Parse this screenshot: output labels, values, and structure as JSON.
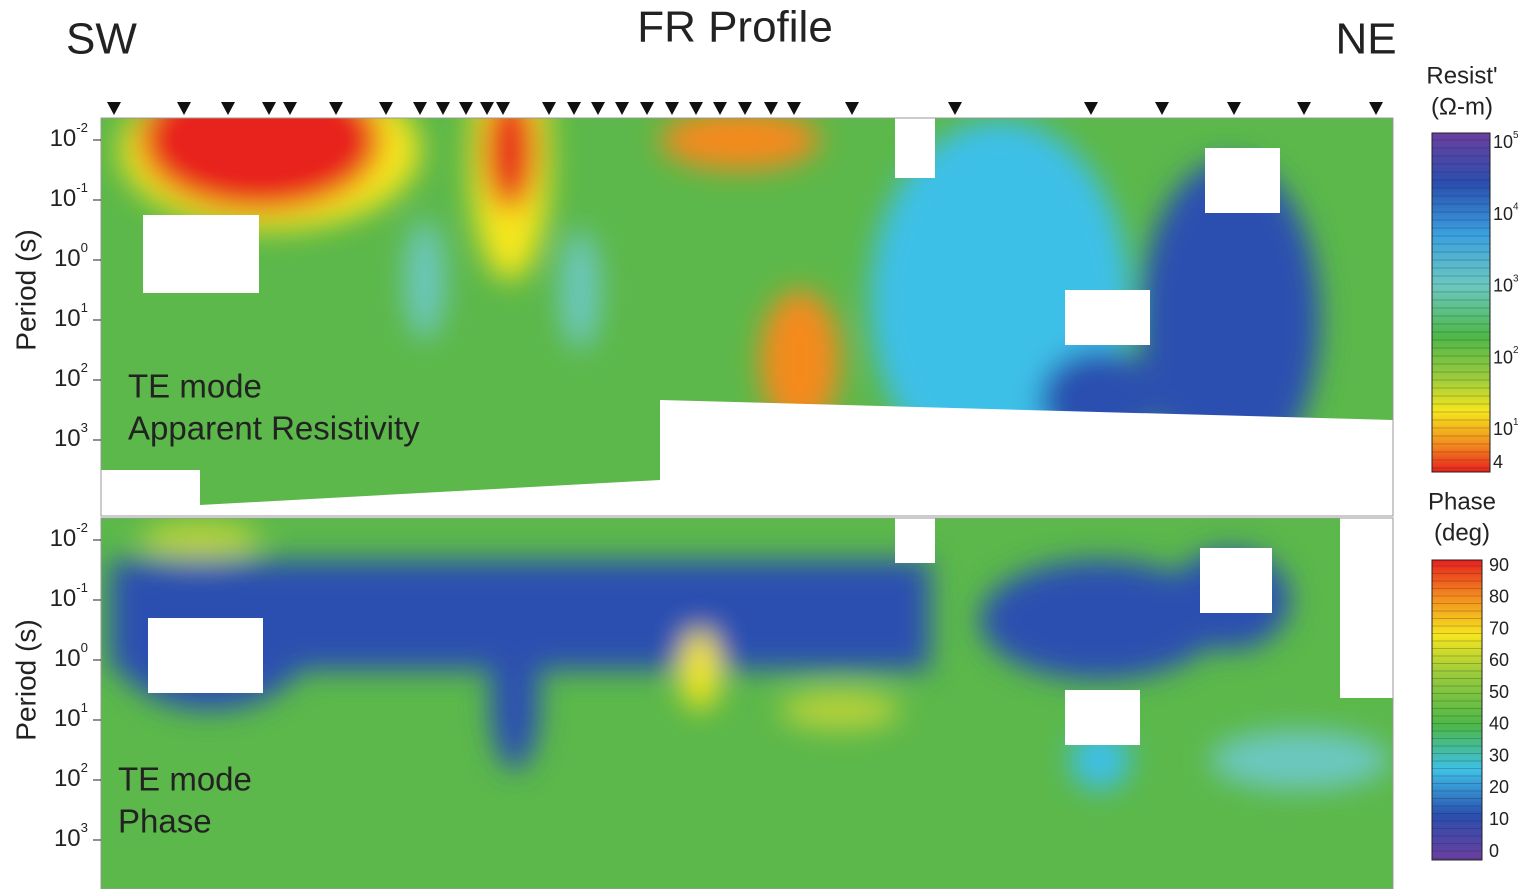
{
  "header": {
    "left": "SW",
    "title": "FR Profile",
    "right": "NE"
  },
  "panels": [
    {
      "y_label": "Period (s)",
      "mode": "TE mode",
      "quantity": "Apparent Resistivity",
      "yticks": [
        {
          "base": "10",
          "exp": -2
        },
        {
          "base": "10",
          "exp": -1
        },
        {
          "base": "10",
          "exp": 0
        },
        {
          "base": "10",
          "exp": 1
        },
        {
          "base": "10",
          "exp": 2
        },
        {
          "base": "10",
          "exp": 3
        }
      ]
    },
    {
      "y_label": "Period (s)",
      "mode": "TE mode",
      "quantity": "Phase",
      "yticks": [
        {
          "base": "10",
          "exp": -2
        },
        {
          "base": "10",
          "exp": -1
        },
        {
          "base": "10",
          "exp": 0
        },
        {
          "base": "10",
          "exp": 1
        },
        {
          "base": "10",
          "exp": 2
        },
        {
          "base": "10",
          "exp": 3
        }
      ]
    }
  ],
  "resistivity_scale": {
    "title": "Resist'",
    "unit": "(Ω-m)",
    "ticks": [
      {
        "base": "10",
        "exp": 5
      },
      {
        "base": "10",
        "exp": 4
      },
      {
        "base": "10",
        "exp": 3
      },
      {
        "base": "10",
        "exp": 2
      },
      {
        "base": "10",
        "exp": 1
      }
    ],
    "bottom_label": "4"
  },
  "phase_scale": {
    "title": "Phase",
    "unit": "(deg)",
    "ticks": [
      90,
      80,
      70,
      60,
      50,
      40,
      30,
      20,
      10,
      0
    ]
  }
}
